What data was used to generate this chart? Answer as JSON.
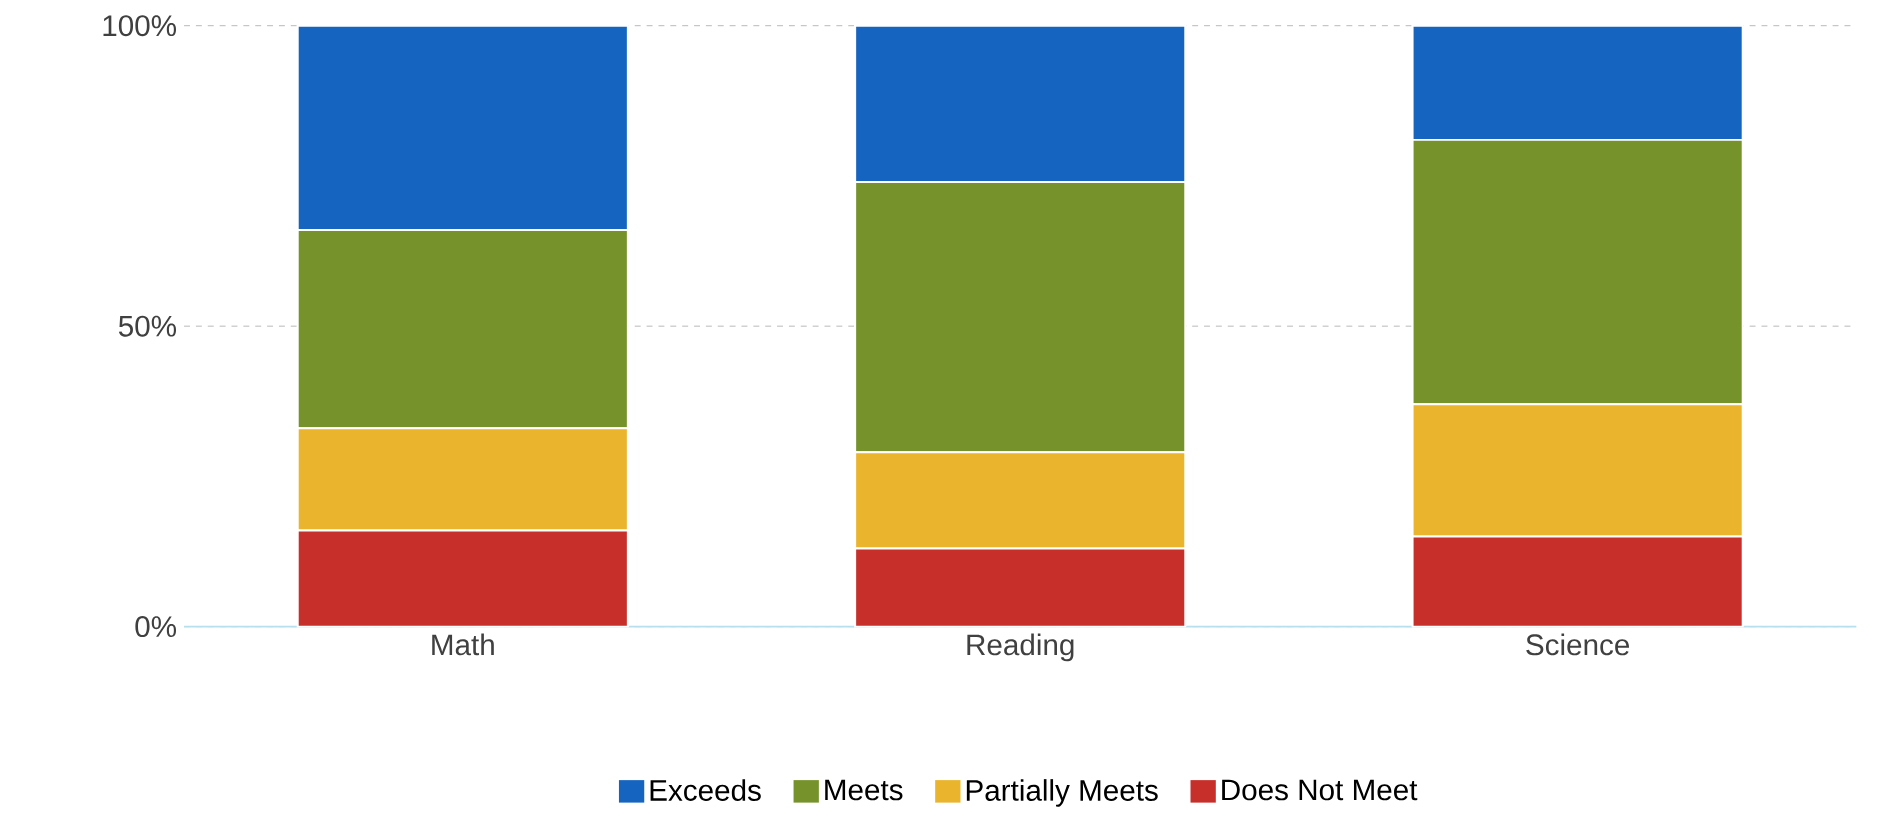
{
  "chart_data": {
    "type": "bar",
    "stacked": true,
    "categories": [
      "Math",
      "Reading",
      "Science"
    ],
    "series": [
      {
        "name": "Does Not Meet",
        "color": "#c62f2a",
        "values": [
          16,
          13,
          15
        ]
      },
      {
        "name": "Partially Meets",
        "color": "#eab42c",
        "values": [
          17,
          16,
          22
        ]
      },
      {
        "name": "Meets",
        "color": "#76922a",
        "values": [
          33,
          45,
          44
        ]
      },
      {
        "name": "Exceeds",
        "color": "#1565c0",
        "values": [
          34,
          26,
          19
        ]
      }
    ],
    "ylim": [
      0,
      100
    ],
    "yticks": [
      {
        "value": 0,
        "label": "0%"
      },
      {
        "value": 50,
        "label": "50%"
      },
      {
        "value": 100,
        "label": "100%"
      }
    ],
    "grid": "y",
    "legend": "bottom"
  }
}
